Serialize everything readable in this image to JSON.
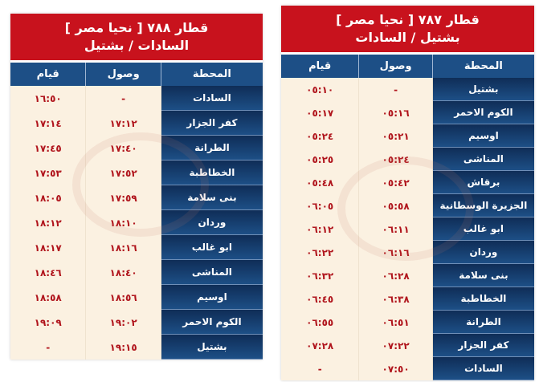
{
  "headers": {
    "station": "المحطة",
    "arrival": "وصول",
    "departure": "قيام"
  },
  "left": {
    "title": "قطار ٧٨٨ [ نحيا مصر ]",
    "route": "السادات / بشتيل",
    "rows": [
      {
        "station": "السادات",
        "arr": "-",
        "dep": "١٦:٥٠"
      },
      {
        "station": "كفر الجزار",
        "arr": "١٧:١٢",
        "dep": "١٧:١٤"
      },
      {
        "station": "الطرانة",
        "arr": "١٧:٤٠",
        "dep": "١٧:٤٥"
      },
      {
        "station": "الخطاطبة",
        "arr": "١٧:٥٢",
        "dep": "١٧:٥٣"
      },
      {
        "station": "بنى سلامة",
        "arr": "١٧:٥٩",
        "dep": "١٨:٠٥"
      },
      {
        "station": "وردان",
        "arr": "١٨:١٠",
        "dep": "١٨:١٢"
      },
      {
        "station": "ابو غالب",
        "arr": "١٨:١٦",
        "dep": "١٨:١٧"
      },
      {
        "station": "المناشى",
        "arr": "١٨:٤٠",
        "dep": "١٨:٤٦"
      },
      {
        "station": "اوسيم",
        "arr": "١٨:٥٦",
        "dep": "١٨:٥٨"
      },
      {
        "station": "الكوم الاحمر",
        "arr": "١٩:٠٢",
        "dep": "١٩:٠٩"
      },
      {
        "station": "بشتيل",
        "arr": "١٩:١٥",
        "dep": "-"
      }
    ]
  },
  "right": {
    "title": "قطار ٧٨٧ [ نحيا مصر ]",
    "route": "بشتيل / السادات",
    "rows": [
      {
        "station": "بشتيل",
        "arr": "-",
        "dep": "٠٥:١٠"
      },
      {
        "station": "الكوم الاحمر",
        "arr": "٠٥:١٦",
        "dep": "٠٥:١٧"
      },
      {
        "station": "اوسيم",
        "arr": "٠٥:٢١",
        "dep": "٠٥:٢٤"
      },
      {
        "station": "المناشى",
        "arr": "٠٥:٢٤",
        "dep": "٠٥:٢٥"
      },
      {
        "station": "برقاش",
        "arr": "٠٥:٤٢",
        "dep": "٠٥:٤٨"
      },
      {
        "station": "الجزيرة الوسطانية",
        "arr": "٠٥:٥٨",
        "dep": "٠٦:٠٥"
      },
      {
        "station": "ابو غالب",
        "arr": "٠٦:١١",
        "dep": "٠٦:١٢"
      },
      {
        "station": "وردان",
        "arr": "٠٦:١٦",
        "dep": "٠٦:٢٢"
      },
      {
        "station": "بنى سلامة",
        "arr": "٠٦:٢٨",
        "dep": "٠٦:٣٢"
      },
      {
        "station": "الخطاطبة",
        "arr": "٠٦:٣٨",
        "dep": "٠٦:٤٥"
      },
      {
        "station": "الطرانة",
        "arr": "٠٦:٥١",
        "dep": "٠٦:٥٥"
      },
      {
        "station": "كفر الجزار",
        "arr": "٠٧:٢٢",
        "dep": "٠٧:٢٨"
      },
      {
        "station": "السادات",
        "arr": "٠٧:٥٠",
        "dep": "-"
      }
    ]
  },
  "colors": {
    "title_bg": "#c8121d",
    "header_bg": "#1d4f86",
    "time_text": "#b0141c",
    "cell_bg": "#fbf1e1"
  }
}
